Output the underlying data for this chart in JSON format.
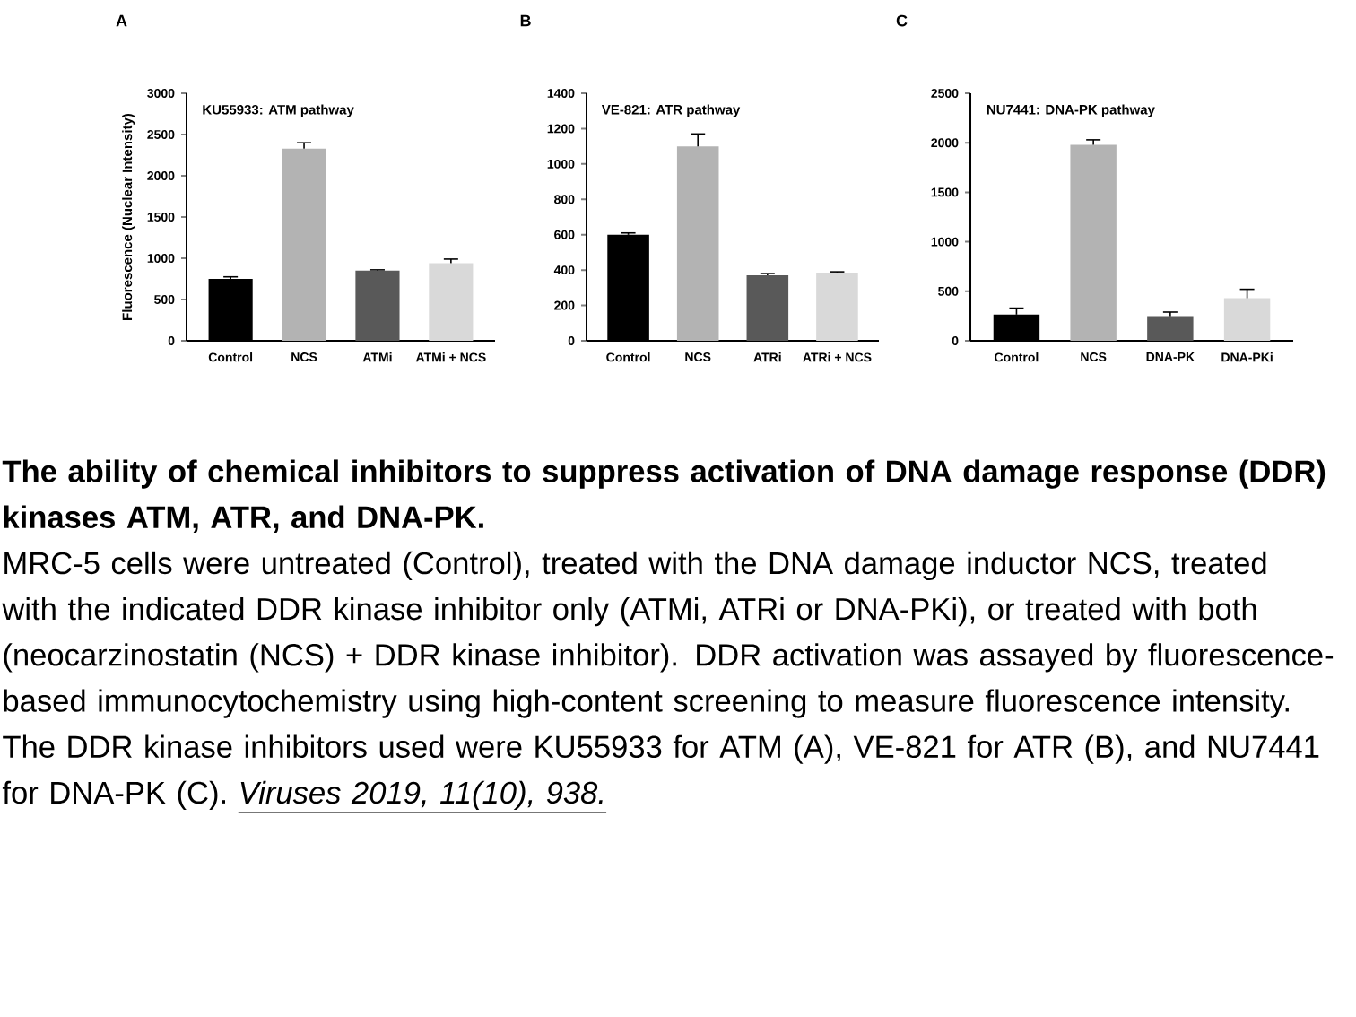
{
  "chart_data": [
    {
      "type": "bar",
      "title": "A",
      "subtitle": "KU55933: ATM pathway",
      "ylabel": "Fluorescence (Nuclear Intensity)",
      "categories": [
        "Control",
        "NCS",
        "ATMi",
        "ATMi + NCS"
      ],
      "values": [
        750,
        2330,
        850,
        940
      ],
      "errors": [
        25,
        70,
        10,
        50
      ],
      "colors": [
        "#000000",
        "#b3b3b3",
        "#595959",
        "#d9d9d9"
      ],
      "ylim": [
        0,
        3000
      ],
      "yticks": [
        0,
        500,
        1000,
        1500,
        2000,
        2500,
        3000
      ],
      "annotations": [
        "The ability of chemical inhibitors to suppress activation of DNA damage response (DDR) kinases ATM, ATR, and DNA-PK.",
        "MRC-5 cells were untreated (Control), treated with the DNA damage inductor NCS, treated with the indicated DDR kinase inhibitor only (ATMi, ATRi or DNA-PKi), or treated with both (neocarzinostatin (NCS) + DDR kinase inhibitor). DDR activation was assayed by fluorescence-based immunocytochemistry using high-content screening to measure fluorescence intensity. The DDR kinase inhibitors used were KU55933 for ATM (A), VE-821 for ATR (B), and NU7441 for DNA-PK (C).",
        "Viruses 2019, 11(10), 938."
      ]
    },
    {
      "type": "bar",
      "title": "B",
      "subtitle": "VE-821: ATR pathway",
      "categories": [
        "Control",
        "NCS",
        "ATRi",
        "ATRi + NCS"
      ],
      "values": [
        600,
        1100,
        370,
        385
      ],
      "errors": [
        10,
        70,
        10,
        5
      ],
      "colors": [
        "#000000",
        "#b3b3b3",
        "#595959",
        "#d9d9d9"
      ],
      "ylim": [
        0,
        1400
      ],
      "yticks": [
        0,
        200,
        400,
        600,
        800,
        1000,
        1200,
        1400
      ]
    },
    {
      "type": "bar",
      "title": "C",
      "subtitle": "NU7441: DNA-PK pathway",
      "categories": [
        "Control",
        "NCS",
        "DNA-PK",
        "DNA-PKi"
      ],
      "values": [
        265,
        1980,
        250,
        430
      ],
      "errors": [
        65,
        50,
        40,
        90
      ],
      "colors": [
        "#000000",
        "#b3b3b3",
        "#595959",
        "#d9d9d9"
      ],
      "ylim": [
        0,
        2500
      ],
      "yticks": [
        0,
        500,
        1000,
        1500,
        2000,
        2500
      ]
    }
  ]
}
